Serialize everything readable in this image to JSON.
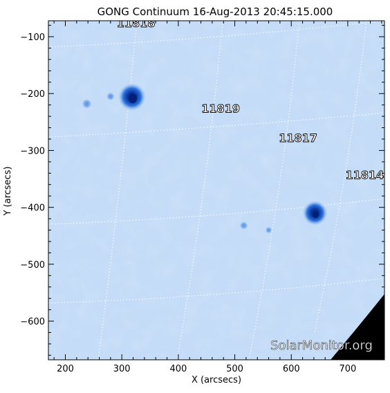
{
  "title": "GONG Continuum 16-Aug-2013 20:45:15.000",
  "x_axis": {
    "label": "X (arcsecs)",
    "range": [
      170,
      765
    ],
    "ticks": [
      200,
      300,
      400,
      500,
      600,
      700
    ],
    "tick_labels": [
      "200",
      "300",
      "400",
      "500",
      "600",
      "700"
    ]
  },
  "y_axis": {
    "label": "Y (arcsecs)",
    "range": [
      -668,
      -72
    ],
    "ticks": [
      -100,
      -200,
      -300,
      -400,
      -500,
      -600
    ],
    "tick_labels": [
      "−100",
      "−200",
      "−300",
      "−400",
      "−500",
      "−600"
    ]
  },
  "active_regions": [
    {
      "label": "11818",
      "x": 325,
      "y": -83
    },
    {
      "label": "11819",
      "x": 475,
      "y": -233
    },
    {
      "label": "11817",
      "x": 612,
      "y": -285
    },
    {
      "label": "11814",
      "x": 730,
      "y": -350
    }
  ],
  "sunspots": [
    {
      "x": 318,
      "y": -206,
      "strength": 1.0
    },
    {
      "x": 238,
      "y": -218,
      "strength": 0.45
    },
    {
      "x": 280,
      "y": -205,
      "strength": 0.3
    },
    {
      "x": 642,
      "y": -410,
      "strength": 0.75
    },
    {
      "x": 516,
      "y": -432,
      "strength": 0.3
    },
    {
      "x": 560,
      "y": -440,
      "strength": 0.15
    }
  ],
  "watermark": "SolarMonitor.org",
  "colors": {
    "disk_background": "#c4dcf8",
    "umbra": "#00207a",
    "penumbra": "#2e74df",
    "space": "#000000",
    "grid": "#ffffff",
    "frame": "#000000"
  }
}
